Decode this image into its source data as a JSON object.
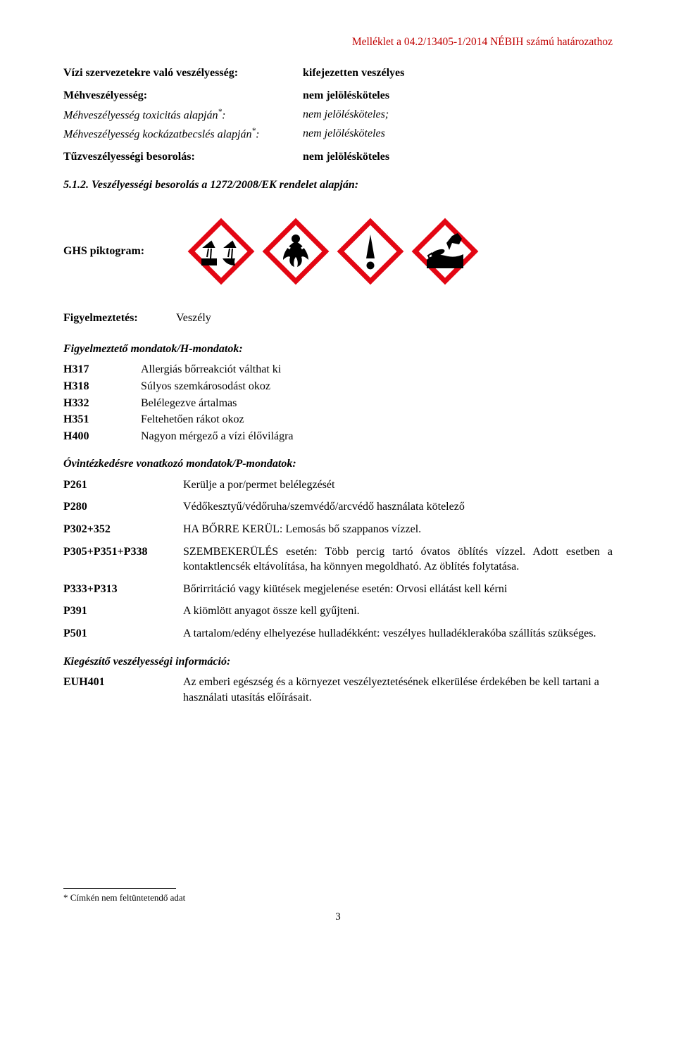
{
  "header_note": "Melléklet a 04.2/13405-1/2014 NÉBIH számú határozathoz",
  "classification": {
    "rows": [
      {
        "label": "Vízi szervezetekre való veszélyesség:",
        "value": "kifejezetten veszélyes",
        "label_bold": true,
        "value_bold": true
      },
      {
        "label": "Méhveszélyesség:",
        "value": "nem jelölésköteles",
        "label_bold": true,
        "value_bold": true
      },
      {
        "label": "Méhveszélyesség toxicitás alapján*:",
        "value": "nem jelölésköteles;",
        "label_bold": false,
        "label_italic": true,
        "value_italic": true,
        "has_super": true
      },
      {
        "label": "Méhveszélyesség kockázatbecslés alapján*:",
        "value": "nem jelölésköteles",
        "label_bold": false,
        "label_italic": true,
        "value_italic": true,
        "has_super": true
      },
      {
        "label": "Tűzveszélyességi besorolás:",
        "value": "nem jelölésköteles",
        "label_bold": true,
        "value_bold": true
      }
    ]
  },
  "section_num": "5.1.2.",
  "section_title": "Veszélyességi besorolás a 1272/2008/EK rendelet alapján:",
  "ghs_label": "GHS piktogram:",
  "pictograms": {
    "colors": {
      "border": "#e30613",
      "fill": "#ffffff",
      "symbol": "#000000"
    },
    "list": [
      "corrosion",
      "health-hazard",
      "exclamation",
      "environment"
    ]
  },
  "signal": {
    "label": "Figyelmeztetés:",
    "value": "Veszély"
  },
  "h_heading": "Figyelmeztető mondatok/H-mondatok:",
  "h_statements": [
    {
      "code": "H317",
      "desc": "Allergiás bőrreakciót válthat ki"
    },
    {
      "code": "H318",
      "desc": "Súlyos szemkárosodást okoz"
    },
    {
      "code": "H332",
      "desc": "Belélegezve ártalmas"
    },
    {
      "code": "H351",
      "desc": "Feltehetően rákot okoz"
    },
    {
      "code": "H400",
      "desc": "Nagyon mérgező a vízi élővilágra"
    }
  ],
  "p_heading": "Óvintézkedésre vonatkozó mondatok/P-mondatok:",
  "p_statements": [
    {
      "code": "P261",
      "desc": "Kerülje a por/permet belélegzését"
    },
    {
      "code": "P280",
      "desc": "Védőkesztyű/védőruha/szemvédő/arcvédő használata kötelező"
    },
    {
      "code": "P302+352",
      "desc": "HA BŐRRE KERÜL: Lemosás bő szappanos vízzel."
    },
    {
      "code": "P305+P351+P338",
      "desc": "SZEMBEKERÜLÉS esetén: Több percig tartó óvatos öblítés vízzel. Adott esetben a kontaktlencsék eltávolítása, ha könnyen megoldható. Az öblítés folytatása."
    },
    {
      "code": "P333+P313",
      "desc": "Bőrirritáció vagy kiütések megjelenése esetén: Orvosi ellátást kell kérni"
    },
    {
      "code": "P391",
      "desc": "A kiömlött anyagot össze kell gyűjteni."
    },
    {
      "code": "P501",
      "desc": "A tartalom/edény elhelyezése hulladékként: veszélyes hulladéklerakóba szállítás szükséges."
    }
  ],
  "euh_heading": "Kiegészítő veszélyességi információ:",
  "euh_statements": [
    {
      "code": "EUH401",
      "desc": "Az emberi egészség és a környezet veszélyeztetésének elkerülése érdekében be kell tartani a használati utasítás előírásait."
    }
  ],
  "footnote": "* Címkén nem feltüntetendő adat",
  "page": "3"
}
